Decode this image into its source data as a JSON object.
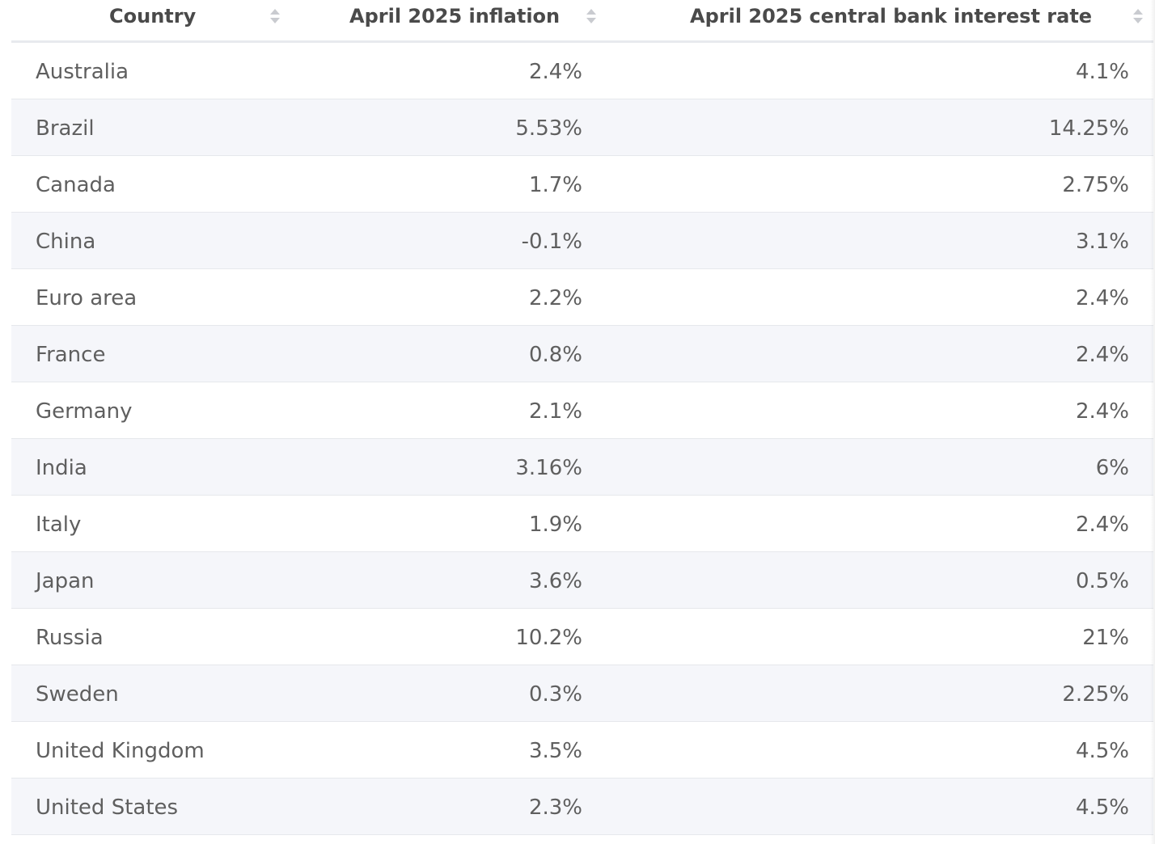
{
  "table": {
    "columns": [
      {
        "label": "Country",
        "sort_icon": "sort-icon"
      },
      {
        "label": "April 2025 inflation",
        "sort_icon": "sort-icon"
      },
      {
        "label": "April 2025 central bank interest rate",
        "sort_icon": "sort-icon"
      }
    ],
    "rows": [
      {
        "country": "Australia",
        "inflation": "2.4%",
        "rate": "4.1%"
      },
      {
        "country": "Brazil",
        "inflation": "5.53%",
        "rate": "14.25%"
      },
      {
        "country": "Canada",
        "inflation": "1.7%",
        "rate": "2.75%"
      },
      {
        "country": "China",
        "inflation": "-0.1%",
        "rate": "3.1%"
      },
      {
        "country": "Euro area",
        "inflation": "2.2%",
        "rate": "2.4%"
      },
      {
        "country": "France",
        "inflation": "0.8%",
        "rate": "2.4%"
      },
      {
        "country": "Germany",
        "inflation": "2.1%",
        "rate": "2.4%"
      },
      {
        "country": "India",
        "inflation": "3.16%",
        "rate": "6%"
      },
      {
        "country": "Italy",
        "inflation": "1.9%",
        "rate": "2.4%"
      },
      {
        "country": "Japan",
        "inflation": "3.6%",
        "rate": "0.5%"
      },
      {
        "country": "Russia",
        "inflation": "10.2%",
        "rate": "21%"
      },
      {
        "country": "Sweden",
        "inflation": "0.3%",
        "rate": "2.25%"
      },
      {
        "country": "United Kingdom",
        "inflation": "3.5%",
        "rate": "4.5%"
      },
      {
        "country": "United States",
        "inflation": "2.3%",
        "rate": "4.5%"
      }
    ]
  },
  "colors": {
    "header_text": "#4a4a4a",
    "cell_text": "#5f5f5f",
    "row_alt_bg": "#f5f6fa",
    "row_border": "#e6e8ec",
    "sort_icon": "#c9cbd0"
  }
}
